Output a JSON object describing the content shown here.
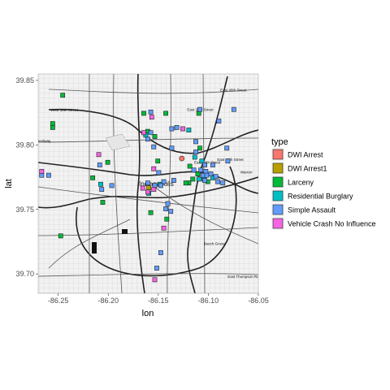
{
  "chart_data": {
    "type": "scatter",
    "title": "",
    "xlabel": "lon",
    "ylabel": "lat",
    "xlim": [
      -86.27,
      -86.05
    ],
    "ylim": [
      39.685,
      39.855
    ],
    "x_ticks": [
      -86.25,
      -86.2,
      -86.15,
      -86.1,
      -86.05
    ],
    "x_tick_labels": [
      "-86.25",
      "-86.20",
      "-86.15",
      "-86.10",
      "-86.05"
    ],
    "y_ticks": [
      39.7,
      39.75,
      39.8,
      39.85
    ],
    "y_tick_labels": [
      "39.70",
      "39.75",
      "39.80",
      "39.85"
    ],
    "legend": {
      "title": "type",
      "placement": "right",
      "entries": [
        {
          "label": "DWI Arrest",
          "color": "#F8766D"
        },
        {
          "label": "DWI Arrest1",
          "color": "#B79F00"
        },
        {
          "label": "Larceny",
          "color": "#00BA38"
        },
        {
          "label": "Residential Burglary",
          "color": "#00BFC4"
        },
        {
          "label": "Simple Assault",
          "color": "#619CFF"
        },
        {
          "label": "Vehicle Crash No Influence",
          "color": "#F564E3"
        }
      ]
    },
    "map_labels": [
      {
        "text": "East 46th Street",
        "lon": -86.075,
        "lat": 39.8415
      },
      {
        "text": "West 38th Street",
        "lon": -86.244,
        "lat": 39.826
      },
      {
        "text": "East 38th Street",
        "lon": -86.108,
        "lat": 39.8265
      },
      {
        "text": "East 30th Street",
        "lon": -86.101,
        "lat": 39.7855
      },
      {
        "text": "East 10th Street",
        "lon": -86.078,
        "lat": 39.7875
      },
      {
        "text": "Indianapolis",
        "lon": -86.152,
        "lat": 39.768
      },
      {
        "text": "Beech Grove",
        "lon": -86.094,
        "lat": 39.7225
      },
      {
        "text": "Speedway",
        "lon": -86.266,
        "lat": 39.802
      },
      {
        "text": "Warren",
        "lon": -86.062,
        "lat": 39.778
      },
      {
        "text": "East Thompson Road",
        "lon": -86.063,
        "lat": 39.697
      }
    ],
    "series": [
      {
        "name": "DWI Arrest",
        "color": "#F8766D",
        "points": [
          {
            "x": -86.1265,
            "y": 39.7895
          },
          {
            "x": -86.1035,
            "y": 39.7765
          }
        ]
      },
      {
        "name": "DWI Arrest1",
        "color": "#B79F00",
        "points": [
          {
            "x": -86.1595,
            "y": 39.7668
          }
        ]
      },
      {
        "name": "Larceny",
        "color": "#00BA38",
        "points": [
          {
            "x": -86.2455,
            "y": 39.8385
          },
          {
            "x": -86.2555,
            "y": 39.8135
          },
          {
            "x": -86.2555,
            "y": 39.8165
          },
          {
            "x": -86.2005,
            "y": 39.7865
          },
          {
            "x": -86.1425,
            "y": 39.8245
          },
          {
            "x": -86.1645,
            "y": 39.8245
          },
          {
            "x": -86.1605,
            "y": 39.8105
          },
          {
            "x": -86.1535,
            "y": 39.8065
          },
          {
            "x": -86.1505,
            "y": 39.7875
          },
          {
            "x": -86.1095,
            "y": 39.8245
          },
          {
            "x": -86.1085,
            "y": 39.7975
          },
          {
            "x": -86.1185,
            "y": 39.7835
          },
          {
            "x": -86.1105,
            "y": 39.7775
          },
          {
            "x": -86.1155,
            "y": 39.7735
          },
          {
            "x": -86.1195,
            "y": 39.7705
          },
          {
            "x": -86.1225,
            "y": 39.7705
          },
          {
            "x": -86.1005,
            "y": 39.7715
          },
          {
            "x": -86.2155,
            "y": 39.7745
          },
          {
            "x": -86.2055,
            "y": 39.7555
          },
          {
            "x": -86.2475,
            "y": 39.7295
          },
          {
            "x": -86.1415,
            "y": 39.7425
          },
          {
            "x": -86.1575,
            "y": 39.7475
          }
        ]
      },
      {
        "name": "Residential Burglary",
        "color": "#00BFC4",
        "points": [
          {
            "x": -86.1625,
            "y": 39.8075
          },
          {
            "x": -86.1195,
            "y": 39.8115
          },
          {
            "x": -86.1135,
            "y": 39.7905
          },
          {
            "x": -86.1065,
            "y": 39.7875
          },
          {
            "x": -86.1095,
            "y": 39.7735
          },
          {
            "x": -86.1045,
            "y": 39.7735
          },
          {
            "x": -86.0955,
            "y": 39.7745
          },
          {
            "x": -86.2075,
            "y": 39.7695
          },
          {
            "x": -86.1485,
            "y": 39.7695
          },
          {
            "x": -86.1595,
            "y": 39.7625
          }
        ]
      },
      {
        "name": "Simple Assault",
        "color": "#619CFF",
        "points": [
          {
            "x": -86.1575,
            "y": 39.8255
          },
          {
            "x": -86.1085,
            "y": 39.8275
          },
          {
            "x": -86.0745,
            "y": 39.8275
          },
          {
            "x": -86.0895,
            "y": 39.8185
          },
          {
            "x": -86.1365,
            "y": 39.8125
          },
          {
            "x": -86.1315,
            "y": 39.8135
          },
          {
            "x": -86.1575,
            "y": 39.8095
          },
          {
            "x": -86.1605,
            "y": 39.8045
          },
          {
            "x": -86.1545,
            "y": 39.7985
          },
          {
            "x": -86.1365,
            "y": 39.7975
          },
          {
            "x": -86.1125,
            "y": 39.8025
          },
          {
            "x": -86.0815,
            "y": 39.7975
          },
          {
            "x": -86.0805,
            "y": 39.7875
          },
          {
            "x": -86.1125,
            "y": 39.7945
          },
          {
            "x": -86.1035,
            "y": 39.7845
          },
          {
            "x": -86.0955,
            "y": 39.7845
          },
          {
            "x": -86.1145,
            "y": 39.7805
          },
          {
            "x": -86.1075,
            "y": 39.7805
          },
          {
            "x": -86.1025,
            "y": 39.7795
          },
          {
            "x": -86.1055,
            "y": 39.7765
          },
          {
            "x": -86.1015,
            "y": 39.7765
          },
          {
            "x": -86.0975,
            "y": 39.7775
          },
          {
            "x": -86.0925,
            "y": 39.7755
          },
          {
            "x": -86.1035,
            "y": 39.7725
          },
          {
            "x": -86.0905,
            "y": 39.7715
          },
          {
            "x": -86.0855,
            "y": 39.7705
          },
          {
            "x": -86.1495,
            "y": 39.7785
          },
          {
            "x": -86.1345,
            "y": 39.7725
          },
          {
            "x": -86.1445,
            "y": 39.7715
          },
          {
            "x": -86.1475,
            "y": 39.7685
          },
          {
            "x": -86.1535,
            "y": 39.7685
          },
          {
            "x": -86.2665,
            "y": 39.7765
          },
          {
            "x": -86.2595,
            "y": 39.7765
          },
          {
            "x": -86.2085,
            "y": 39.7845
          },
          {
            "x": -86.1965,
            "y": 39.7685
          },
          {
            "x": -86.2065,
            "y": 39.7655
          },
          {
            "x": -86.1605,
            "y": 39.7705
          },
          {
            "x": -86.1405,
            "y": 39.7545
          },
          {
            "x": -86.1425,
            "y": 39.7505
          },
          {
            "x": -86.1375,
            "y": 39.7485
          },
          {
            "x": -86.1475,
            "y": 39.7165
          },
          {
            "x": -86.1515,
            "y": 39.7045
          }
        ]
      },
      {
        "name": "Vehicle Crash No Influence",
        "color": "#F564E3",
        "points": [
          {
            "x": -86.1565,
            "y": 39.8215
          },
          {
            "x": -86.1645,
            "y": 39.8095
          },
          {
            "x": -86.1255,
            "y": 39.8125
          },
          {
            "x": -86.2095,
            "y": 39.7925
          },
          {
            "x": -86.2665,
            "y": 39.7795
          },
          {
            "x": -86.1545,
            "y": 39.7815
          },
          {
            "x": -86.1655,
            "y": 39.7665
          },
          {
            "x": -86.1545,
            "y": 39.7655
          },
          {
            "x": -86.1605,
            "y": 39.7635
          },
          {
            "x": -86.1445,
            "y": 39.7355
          },
          {
            "x": -86.1535,
            "y": 39.6955
          }
        ]
      }
    ]
  }
}
